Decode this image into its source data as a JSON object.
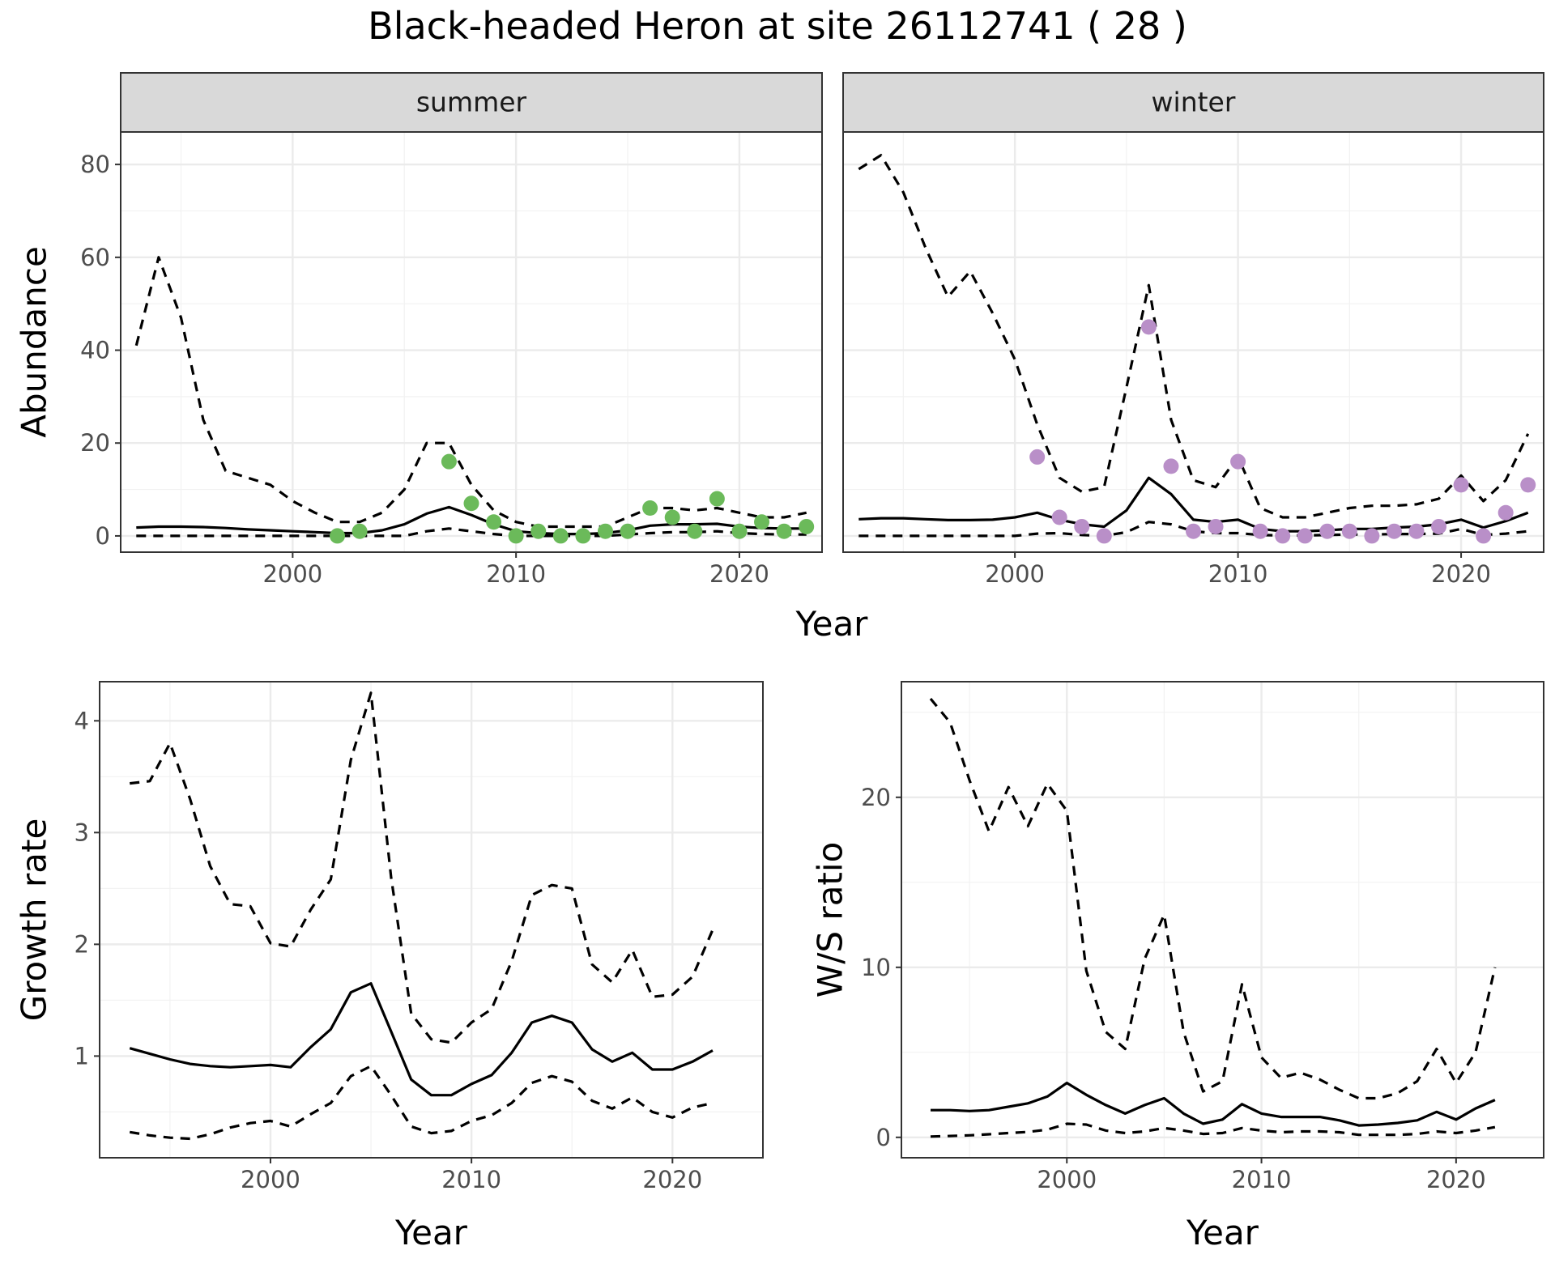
{
  "figure": {
    "title": "Black-headed Heron at site 26112741 ( 28 )",
    "top_x_label": "Year"
  },
  "colors": {
    "summer_points": "#6bba5a",
    "winter_points": "#b98fc8",
    "lines": "#000000"
  },
  "chart_data": [
    {
      "type": "line",
      "panel": "abundance-summer",
      "strip": "summer",
      "ylabel": "Abundance",
      "xlim": [
        1992.3,
        2023.7
      ],
      "ylim": [
        -3.5,
        87
      ],
      "xticks": [
        2000,
        2010,
        2020
      ],
      "yticks": [
        0,
        20,
        40,
        60,
        80
      ],
      "series": [
        {
          "style": "solid",
          "x": [
            1993,
            1994,
            1995,
            1996,
            1997,
            1998,
            1999,
            2000,
            2001,
            2002,
            2003,
            2004,
            2005,
            2006,
            2007,
            2008,
            2009,
            2010,
            2011,
            2012,
            2013,
            2014,
            2015,
            2016,
            2017,
            2018,
            2019,
            2020,
            2021,
            2022,
            2023
          ],
          "y": [
            1.8,
            2.0,
            2.0,
            1.9,
            1.7,
            1.4,
            1.2,
            1.0,
            0.8,
            0.6,
            0.6,
            1.2,
            2.5,
            4.8,
            6.2,
            4.5,
            2.5,
            1.0,
            0.6,
            0.4,
            0.4,
            0.6,
            1.2,
            2.2,
            2.5,
            2.5,
            2.6,
            2.0,
            1.7,
            1.6,
            1.6
          ]
        },
        {
          "style": "dashed",
          "x": [
            1993,
            1994,
            1995,
            1996,
            1997,
            1998,
            1999,
            2000,
            2001,
            2002,
            2003,
            2004,
            2005,
            2006,
            2007,
            2008,
            2009,
            2010,
            2011,
            2012,
            2013,
            2014,
            2015,
            2016,
            2017,
            2018,
            2019,
            2020,
            2021,
            2022,
            2023
          ],
          "y": [
            41,
            60,
            47,
            25,
            14,
            12.5,
            11,
            7.5,
            5,
            3,
            3,
            5,
            10,
            20,
            20,
            11,
            5.5,
            3,
            2,
            2,
            2,
            2,
            4,
            6,
            6,
            5.5,
            6,
            5,
            4,
            4,
            5
          ]
        },
        {
          "style": "dashed",
          "x": [
            1993,
            1994,
            1995,
            1996,
            1997,
            1998,
            1999,
            2000,
            2001,
            2002,
            2003,
            2004,
            2005,
            2006,
            2007,
            2008,
            2009,
            2010,
            2011,
            2012,
            2013,
            2014,
            2015,
            2016,
            2017,
            2018,
            2019,
            2020,
            2021,
            2022,
            2023
          ],
          "y": [
            0,
            0,
            0,
            0,
            0,
            0,
            0,
            0,
            0,
            0,
            0,
            0,
            0,
            1,
            1.6,
            1,
            0.4,
            0,
            0,
            0,
            0,
            0,
            0.3,
            0.6,
            0.8,
            0.8,
            1,
            0.6,
            0.4,
            0.3,
            0.3
          ]
        }
      ],
      "points": {
        "x": [
          2002,
          2003,
          2007,
          2008,
          2009,
          2010,
          2011,
          2012,
          2013,
          2014,
          2015,
          2016,
          2017,
          2018,
          2019,
          2020,
          2021,
          2022,
          2023
        ],
        "y": [
          0,
          1,
          16,
          7,
          3,
          0,
          1,
          0,
          0,
          1,
          1,
          6,
          4,
          1,
          8,
          1,
          3,
          1,
          2
        ]
      }
    },
    {
      "type": "line",
      "panel": "abundance-winter",
      "strip": "winter",
      "ylabel": "",
      "xlim": [
        1992.3,
        2023.7
      ],
      "ylim": [
        -3.5,
        87
      ],
      "xticks": [
        2000,
        2010,
        2020
      ],
      "yticks": [
        0,
        20,
        40,
        60,
        80
      ],
      "series": [
        {
          "style": "solid",
          "x": [
            1993,
            1994,
            1995,
            1996,
            1997,
            1998,
            1999,
            2000,
            2001,
            2002,
            2003,
            2004,
            2005,
            2006,
            2007,
            2008,
            2009,
            2010,
            2011,
            2012,
            2013,
            2014,
            2015,
            2016,
            2017,
            2018,
            2019,
            2020,
            2021,
            2022,
            2023
          ],
          "y": [
            3.6,
            3.8,
            3.8,
            3.6,
            3.4,
            3.4,
            3.5,
            4,
            5,
            3.5,
            2.5,
            2,
            5.5,
            12.5,
            9,
            3.5,
            3,
            3.5,
            1.5,
            1,
            1,
            1.2,
            1.5,
            1.5,
            1.8,
            2,
            2.5,
            3.5,
            1.8,
            3.2,
            5
          ]
        },
        {
          "style": "dashed",
          "x": [
            1993,
            1994,
            1995,
            1996,
            1997,
            1998,
            1999,
            2000,
            2001,
            2002,
            2003,
            2004,
            2005,
            2006,
            2007,
            2008,
            2009,
            2010,
            2011,
            2012,
            2013,
            2014,
            2015,
            2016,
            2017,
            2018,
            2019,
            2020,
            2021,
            2022,
            2023
          ],
          "y": [
            79,
            82,
            74,
            62,
            51.5,
            57,
            48,
            38,
            24,
            12.5,
            9.5,
            10.5,
            32,
            54,
            25,
            12,
            10.5,
            17,
            6,
            4,
            4,
            5,
            6,
            6.5,
            6.5,
            6.8,
            8,
            13,
            7.5,
            12,
            22
          ]
        },
        {
          "style": "dashed",
          "x": [
            1993,
            1994,
            1995,
            1996,
            1997,
            1998,
            1999,
            2000,
            2001,
            2002,
            2003,
            2004,
            2005,
            2006,
            2007,
            2008,
            2009,
            2010,
            2011,
            2012,
            2013,
            2014,
            2015,
            2016,
            2017,
            2018,
            2019,
            2020,
            2021,
            2022,
            2023
          ],
          "y": [
            0,
            0,
            0,
            0,
            0,
            0,
            0,
            0,
            0.5,
            0.6,
            0.2,
            0,
            0.8,
            3,
            2.5,
            1,
            0.6,
            0.6,
            0.2,
            0.1,
            0.1,
            0.2,
            0.3,
            0.3,
            0.4,
            0.4,
            0.5,
            1.5,
            0.2,
            0.5,
            1
          ]
        }
      ],
      "points": {
        "x": [
          2001,
          2002,
          2003,
          2004,
          2006,
          2007,
          2008,
          2009,
          2010,
          2011,
          2012,
          2013,
          2014,
          2015,
          2016,
          2017,
          2018,
          2019,
          2020,
          2021,
          2022,
          2023
        ],
        "y": [
          17,
          4,
          2,
          0,
          45,
          15,
          1,
          2,
          16,
          1,
          0,
          0,
          1,
          1,
          0,
          1,
          1,
          2,
          11,
          0,
          5,
          11
        ]
      }
    },
    {
      "type": "line",
      "panel": "growth-rate",
      "ylabel": "Growth rate",
      "xlabel": "Year",
      "xlim": [
        1991.5,
        2024.5
      ],
      "ylim": [
        0.09,
        4.35
      ],
      "xticks": [
        2000,
        2010,
        2020
      ],
      "yticks": [
        1,
        2,
        3,
        4
      ],
      "series": [
        {
          "style": "solid",
          "x": [
            1993,
            1994,
            1995,
            1996,
            1997,
            1998,
            1999,
            2000,
            2001,
            2002,
            2003,
            2004,
            2005,
            2006,
            2007,
            2008,
            2009,
            2010,
            2011,
            2012,
            2013,
            2014,
            2015,
            2016,
            2017,
            2018,
            2019,
            2020,
            2021,
            2022
          ],
          "y": [
            1.07,
            1.02,
            0.97,
            0.93,
            0.91,
            0.9,
            0.91,
            0.92,
            0.9,
            1.08,
            1.24,
            1.57,
            1.65,
            1.22,
            0.79,
            0.65,
            0.65,
            0.75,
            0.83,
            1.03,
            1.3,
            1.36,
            1.3,
            1.06,
            0.95,
            1.03,
            0.88,
            0.88,
            0.95,
            1.05
          ]
        },
        {
          "style": "dashed",
          "x": [
            1993,
            1994,
            1995,
            1996,
            1997,
            1998,
            1999,
            2000,
            2001,
            2002,
            2003,
            2004,
            2005,
            2006,
            2007,
            2008,
            2009,
            2010,
            2011,
            2012,
            2013,
            2014,
            2015,
            2016,
            2017,
            2018,
            2019,
            2020,
            2021,
            2022
          ],
          "y": [
            3.44,
            3.46,
            3.8,
            3.3,
            2.7,
            2.36,
            2.34,
            2.01,
            1.98,
            2.31,
            2.58,
            3.65,
            4.25,
            2.6,
            1.38,
            1.15,
            1.12,
            1.3,
            1.42,
            1.85,
            2.44,
            2.53,
            2.5,
            1.82,
            1.66,
            1.95,
            1.53,
            1.55,
            1.71,
            2.13
          ]
        },
        {
          "style": "dashed",
          "x": [
            1993,
            1994,
            1995,
            1996,
            1997,
            1998,
            1999,
            2000,
            2001,
            2002,
            2003,
            2004,
            2005,
            2006,
            2007,
            2008,
            2009,
            2010,
            2011,
            2012,
            2013,
            2014,
            2015,
            2016,
            2017,
            2018,
            2019,
            2020,
            2021,
            2022
          ],
          "y": [
            0.32,
            0.29,
            0.27,
            0.26,
            0.3,
            0.36,
            0.4,
            0.42,
            0.37,
            0.48,
            0.58,
            0.82,
            0.91,
            0.65,
            0.37,
            0.31,
            0.33,
            0.42,
            0.47,
            0.58,
            0.76,
            0.82,
            0.77,
            0.6,
            0.53,
            0.63,
            0.5,
            0.45,
            0.54,
            0.58
          ]
        }
      ]
    },
    {
      "type": "line",
      "panel": "ws-ratio",
      "ylabel": "W/S ratio",
      "xlabel": "Year",
      "xlim": [
        1991.5,
        2024.5
      ],
      "ylim": [
        -1.2,
        26.8
      ],
      "xticks": [
        2000,
        2010,
        2020
      ],
      "yticks": [
        0,
        10,
        20
      ],
      "series": [
        {
          "style": "solid",
          "x": [
            1993,
            1994,
            1995,
            1996,
            1997,
            1998,
            1999,
            2000,
            2001,
            2002,
            2003,
            2004,
            2005,
            2006,
            2007,
            2008,
            2009,
            2010,
            2011,
            2012,
            2013,
            2014,
            2015,
            2016,
            2017,
            2018,
            2019,
            2020,
            2021,
            2022
          ],
          "y": [
            1.6,
            1.6,
            1.55,
            1.6,
            1.8,
            2.0,
            2.4,
            3.2,
            2.5,
            1.9,
            1.4,
            1.9,
            2.3,
            1.4,
            0.8,
            1.05,
            1.95,
            1.4,
            1.2,
            1.2,
            1.2,
            1.0,
            0.7,
            0.75,
            0.85,
            1.0,
            1.5,
            1.05,
            1.7,
            2.2
          ]
        },
        {
          "style": "dashed",
          "x": [
            1993,
            1994,
            1995,
            1996,
            1997,
            1998,
            1999,
            2000,
            2001,
            2002,
            2003,
            2004,
            2005,
            2006,
            2007,
            2008,
            2009,
            2010,
            2011,
            2012,
            2013,
            2014,
            2015,
            2016,
            2017,
            2018,
            2019,
            2020,
            2021,
            2022
          ],
          "y": [
            25.8,
            24.4,
            21.0,
            18.0,
            20.6,
            18.3,
            20.8,
            19.2,
            9.8,
            6.2,
            5.2,
            10.5,
            13.1,
            6.2,
            2.7,
            3.3,
            9.0,
            4.7,
            3.5,
            3.8,
            3.4,
            2.8,
            2.3,
            2.3,
            2.6,
            3.3,
            5.2,
            3.2,
            5.0,
            10.0
          ]
        },
        {
          "style": "dashed",
          "x": [
            1993,
            1994,
            1995,
            1996,
            1997,
            1998,
            1999,
            2000,
            2001,
            2002,
            2003,
            2004,
            2005,
            2006,
            2007,
            2008,
            2009,
            2010,
            2011,
            2012,
            2013,
            2014,
            2015,
            2016,
            2017,
            2018,
            2019,
            2020,
            2021,
            2022
          ],
          "y": [
            0.05,
            0.08,
            0.12,
            0.18,
            0.25,
            0.32,
            0.45,
            0.8,
            0.75,
            0.4,
            0.25,
            0.35,
            0.55,
            0.4,
            0.2,
            0.25,
            0.55,
            0.4,
            0.3,
            0.35,
            0.35,
            0.3,
            0.15,
            0.15,
            0.15,
            0.2,
            0.35,
            0.25,
            0.4,
            0.6
          ]
        }
      ]
    }
  ]
}
